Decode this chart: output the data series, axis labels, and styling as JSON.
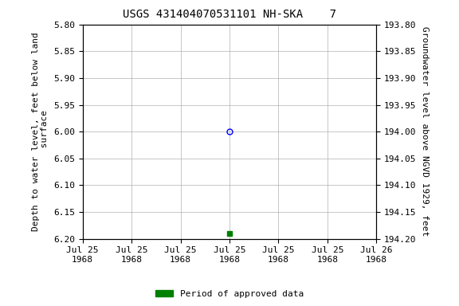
{
  "title": "USGS 431404070531101 NH-SKA    7",
  "ylabel_left": "Depth to water level, feet below land\n surface",
  "ylabel_right": "Groundwater level above NGVD 1929, feet",
  "ylim_left": [
    5.8,
    6.2
  ],
  "ylim_right_top": 194.2,
  "ylim_right_bottom": 193.8,
  "yticks_left": [
    5.8,
    5.85,
    5.9,
    5.95,
    6.0,
    6.05,
    6.1,
    6.15,
    6.2
  ],
  "yticks_right": [
    194.2,
    194.15,
    194.1,
    194.05,
    194.0,
    193.95,
    193.9,
    193.85,
    193.8
  ],
  "xlim": [
    0,
    6
  ],
  "xtick_positions": [
    0,
    1,
    2,
    3,
    4,
    5,
    6
  ],
  "xtick_labels": [
    "Jul 25\n1968",
    "Jul 25\n1968",
    "Jul 25\n1968",
    "Jul 25\n1968",
    "Jul 25\n1968",
    "Jul 25\n1968",
    "Jul 26\n1968"
  ],
  "blue_point_x": 3.0,
  "blue_point_y": 6.0,
  "green_point_x": 3.0,
  "green_point_y": 6.19,
  "bg_color": "#ffffff",
  "grid_color": "#b0b0b0",
  "title_fontsize": 10,
  "axis_label_fontsize": 8,
  "tick_fontsize": 8,
  "legend_label": "Period of approved data"
}
